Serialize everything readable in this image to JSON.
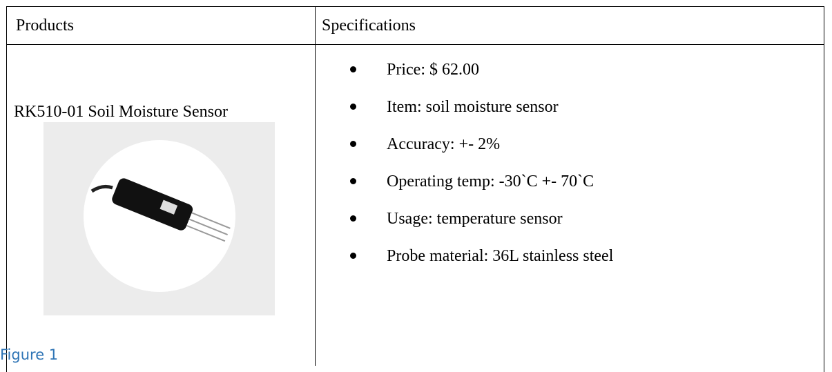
{
  "table": {
    "header": [
      "Products",
      "Specifications"
    ],
    "product": {
      "name": "RK510-01 Soil Moisture Sensor",
      "caption": "Figure 1"
    },
    "specs": [
      "Price: $ 62.00",
      "Item: soil moisture sensor",
      "Accuracy: +- 2%",
      "Operating temp: -30`C +- 70`C",
      "Usage: temperature sensor",
      "Probe material: 36L stainless steel"
    ]
  }
}
